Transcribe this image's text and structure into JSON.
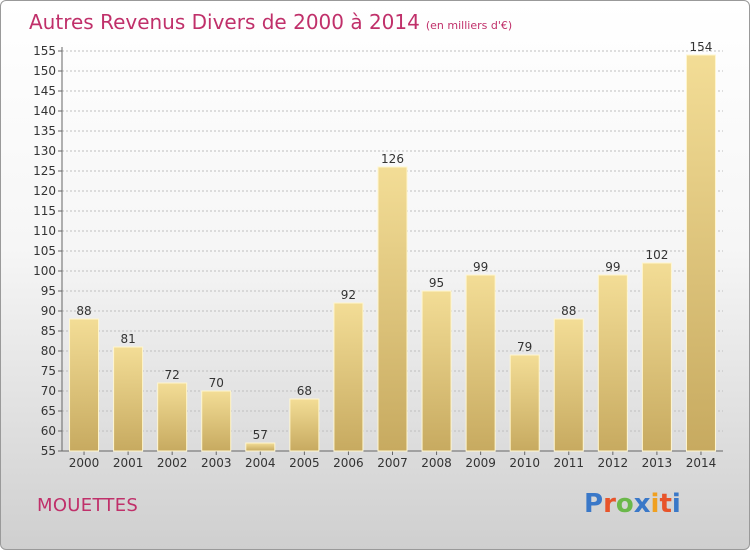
{
  "title": "Autres Revenus Divers de 2000 à 2014",
  "subtitle": "(en milliers d'€)",
  "place": "MOUETTES",
  "brand": {
    "text": "Proxiti",
    "letter_colors": [
      "#3a78c8",
      "#e8542a",
      "#6bb84a",
      "#3a78c8",
      "#f0a020",
      "#e8542a",
      "#3a78c8"
    ]
  },
  "colors": {
    "title": "#c0306a",
    "bar_top": "#f3dd96",
    "bar_bottom": "#c7aa60",
    "grid": "#bfbfbf"
  },
  "chart_data": {
    "type": "bar",
    "categories": [
      "2000",
      "2001",
      "2002",
      "2003",
      "2004",
      "2005",
      "2006",
      "2007",
      "2008",
      "2009",
      "2010",
      "2011",
      "2012",
      "2013",
      "2014"
    ],
    "values": [
      88,
      81,
      72,
      70,
      57,
      68,
      92,
      126,
      95,
      99,
      79,
      88,
      99,
      102,
      154
    ],
    "ylim": [
      55,
      155
    ],
    "yticks": [
      55,
      60,
      65,
      70,
      75,
      80,
      85,
      90,
      95,
      100,
      105,
      110,
      115,
      120,
      125,
      130,
      135,
      140,
      145,
      150,
      155
    ],
    "grid": true,
    "data_labels": true
  }
}
